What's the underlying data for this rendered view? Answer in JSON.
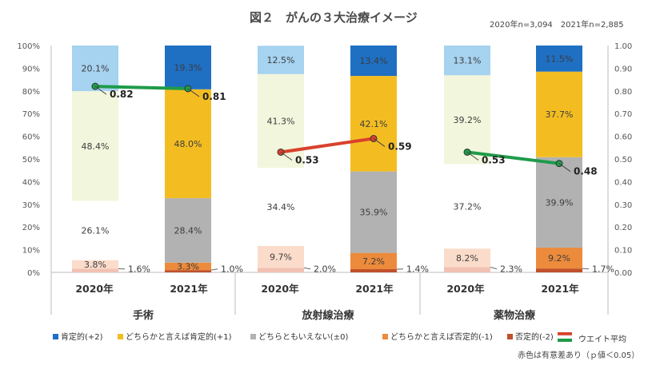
{
  "chart_data": {
    "type": "bar",
    "title": "図２　がんの３大治療イメージ",
    "sample_note": "2020年n=3,094　2021年n=2,885",
    "significance_note": "赤色は有意差あり（ｐ値＜0.05）",
    "left_axis": {
      "ylim": [
        0,
        100
      ],
      "ticks": [
        "0%",
        "10%",
        "20%",
        "30%",
        "40%",
        "50%",
        "60%",
        "70%",
        "80%",
        "90%",
        "100%"
      ]
    },
    "right_axis": {
      "ylim": [
        0,
        1
      ],
      "ticks": [
        "0.00",
        "0.10",
        "0.20",
        "0.30",
        "0.40",
        "0.50",
        "0.60",
        "0.70",
        "0.80",
        "0.90",
        "1.00"
      ]
    },
    "categories": [
      "手術",
      "放射線治療",
      "薬物治療"
    ],
    "years": [
      "2020年",
      "2021年"
    ],
    "series": [
      {
        "name": "否定的(-2)",
        "colors": {
          "2020": "#f1c1b3",
          "2021": "#c0502b"
        },
        "values": {
          "手術": [
            1.6,
            1.0
          ],
          "放射線治療": [
            2.0,
            1.4
          ],
          "薬物治療": [
            2.3,
            1.7
          ]
        },
        "labels": {
          "手術": [
            "1.6%",
            "1.0%"
          ],
          "放射線治療": [
            "2.0%",
            "1.4%"
          ],
          "薬物治療": [
            "2.3%",
            "1.7%"
          ]
        }
      },
      {
        "name": "どちらかと言えば否定的(-1)",
        "colors": {
          "2020": "#fbdccb",
          "2021": "#ec8b3b"
        },
        "values": {
          "手術": [
            3.8,
            3.3
          ],
          "放射線治療": [
            9.7,
            7.2
          ],
          "薬物治療": [
            8.2,
            9.2
          ]
        },
        "labels": {
          "手術": [
            "3.8%",
            "3.3%"
          ],
          "放射線治療": [
            "9.7%",
            "7.2%"
          ],
          "薬物治療": [
            "8.2%",
            "9.2%"
          ]
        }
      },
      {
        "name": "どちらともいえない(±0)",
        "colors": {
          "2020": "#ffffff",
          "2021": "#b2b2b2"
        },
        "values": {
          "手術": [
            26.1,
            28.4
          ],
          "放射線治療": [
            34.4,
            35.9
          ],
          "薬物治療": [
            37.2,
            39.9
          ]
        },
        "labels": {
          "手術": [
            "26.1%",
            "28.4%"
          ],
          "放射線治療": [
            "34.4%",
            "35.9%"
          ],
          "薬物治療": [
            "37.2%",
            "39.9%"
          ]
        }
      },
      {
        "name": "どちらかと言えば肯定的(+1)",
        "colors": {
          "2020": "#f2f6dc",
          "2021": "#f3bd22"
        },
        "values": {
          "手術": [
            48.4,
            48.0
          ],
          "放射線治療": [
            41.3,
            42.1
          ],
          "薬物治療": [
            39.2,
            37.7
          ]
        },
        "labels": {
          "手術": [
            "48.4%",
            "48.0%"
          ],
          "放射線治療": [
            "41.3%",
            "42.1%"
          ],
          "薬物治療": [
            "39.2%",
            "37.7%"
          ]
        }
      },
      {
        "name": "肯定的(+2)",
        "colors": {
          "2020": "#a6d3f0",
          "2021": "#1f6fc3"
        },
        "values": {
          "手術": [
            20.1,
            19.3
          ],
          "放射線治療": [
            12.5,
            13.4
          ],
          "薬物治療": [
            13.1,
            11.5
          ]
        },
        "labels": {
          "手術": [
            "20.1%",
            "19.3%"
          ],
          "放射線治療": [
            "12.5%",
            "13.4%"
          ],
          "薬物治療": [
            "13.1%",
            "11.5%"
          ]
        }
      }
    ],
    "weighted_average": {
      "name": "ウエイト平均",
      "values": {
        "手術": [
          0.82,
          0.81
        ],
        "放射線治療": [
          0.53,
          0.59
        ],
        "薬物治療": [
          0.53,
          0.48
        ]
      },
      "labels": {
        "手術": [
          "0.82",
          "0.81"
        ],
        "放射線治療": [
          "0.53",
          "0.59"
        ],
        "薬物治療": [
          "0.53",
          "0.48"
        ]
      },
      "significant": {
        "手術": false,
        "放射線治療": true,
        "薬物治療": false
      },
      "colors": {
        "normal": "#1f9b4a",
        "significant": "#d9412b"
      }
    },
    "legend": [
      {
        "label": "肯定的(+2)",
        "color": "#1f6fc3"
      },
      {
        "label": "どちらかと言えば肯定的(+1)",
        "color": "#f3bd22"
      },
      {
        "label": "どちらともいえない(±0)",
        "color": "#b2b2b2"
      },
      {
        "label": "どちらかと言えば否定的(-1)",
        "color": "#ec8b3b"
      },
      {
        "label": "否定的(-2)",
        "color": "#c0502b"
      },
      {
        "label": "ウエイト平均",
        "color": "#1f9b4a",
        "color_top": "#d9412b"
      }
    ]
  }
}
